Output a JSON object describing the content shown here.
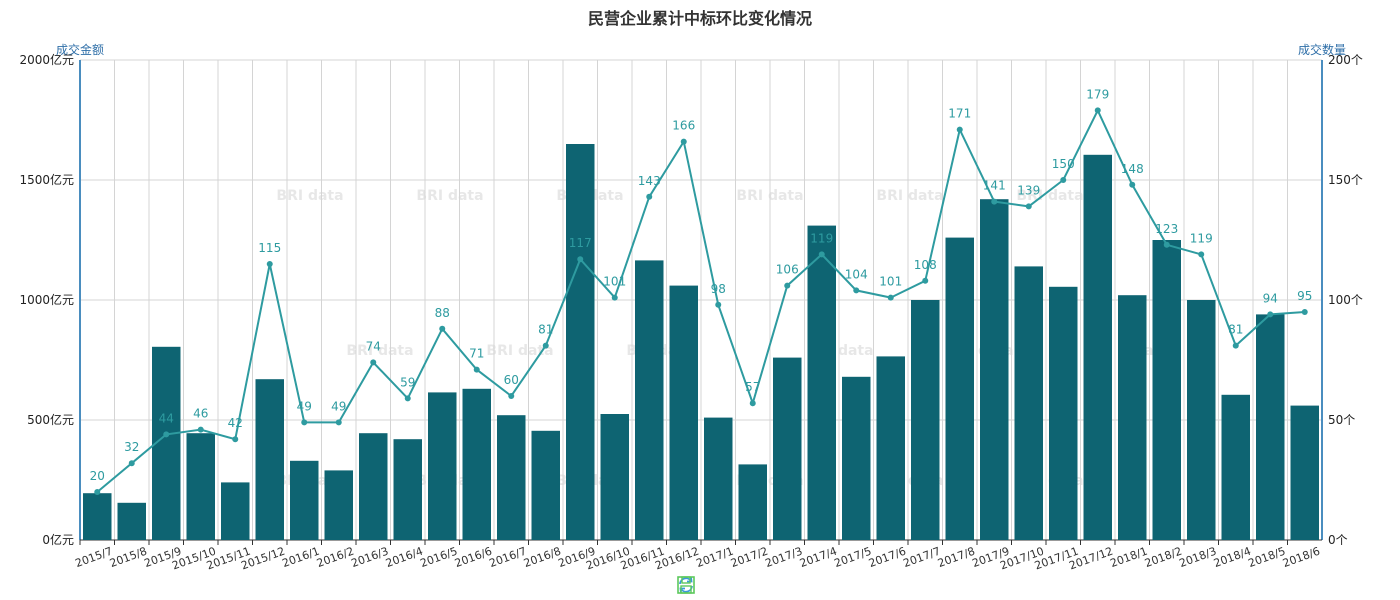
{
  "chart_data": {
    "type": "bar",
    "title": "民营企业累计中标环比变化情况",
    "y_left_name": "成交金额",
    "y_right_name": "成交数量",
    "y_left_unit": "亿元",
    "y_right_unit": "个",
    "y_left_ticks": [
      "0亿元",
      "500亿元",
      "1000亿元",
      "1500亿元",
      "2000亿元"
    ],
    "y_right_ticks": [
      "0个",
      "50个",
      "100个",
      "150个",
      "200个"
    ],
    "y_left_range": [
      0,
      2000
    ],
    "y_right_range": [
      0,
      200
    ],
    "grid": true,
    "watermark": "BRI data",
    "categories": [
      "2015/7",
      "2015/8",
      "2015/9",
      "2015/10",
      "2015/11",
      "2015/12",
      "2016/1",
      "2016/2",
      "2016/3",
      "2016/4",
      "2016/5",
      "2016/6",
      "2016/7",
      "2016/8",
      "2016/9",
      "2016/10",
      "2016/11",
      "2016/12",
      "2017/1",
      "2017/2",
      "2017/3",
      "2017/4",
      "2017/5",
      "2017/6",
      "2017/7",
      "2017/8",
      "2017/9",
      "2017/10",
      "2017/11",
      "2017/12",
      "2018/1",
      "2018/2",
      "2018/3",
      "2018/4",
      "2018/5",
      "2018/6"
    ],
    "series": [
      {
        "type": "bar",
        "axis": "left",
        "color": "#0e6472",
        "values": [
          195,
          155,
          805,
          445,
          240,
          670,
          330,
          290,
          445,
          420,
          615,
          630,
          520,
          455,
          1650,
          525,
          1165,
          1060,
          510,
          315,
          760,
          1310,
          680,
          765,
          1000,
          1260,
          1420,
          1140,
          1055,
          1605,
          1020,
          1250,
          1000,
          605,
          940,
          560
        ]
      },
      {
        "type": "line",
        "axis": "right",
        "color": "#2e9ba0",
        "values": [
          20,
          32,
          44,
          46,
          42,
          115,
          49,
          49,
          74,
          59,
          88,
          71,
          60,
          81,
          117,
          101,
          143,
          166,
          98,
          57,
          106,
          119,
          104,
          101,
          108,
          171,
          141,
          139,
          150,
          179,
          148,
          123,
          119,
          81,
          94,
          95
        ]
      }
    ]
  },
  "toolbox": {
    "restore_icon": "refresh-icon",
    "save_icon": "save-image-icon",
    "restore_color": "#3b9ad9",
    "save_color": "#5cc85c"
  }
}
